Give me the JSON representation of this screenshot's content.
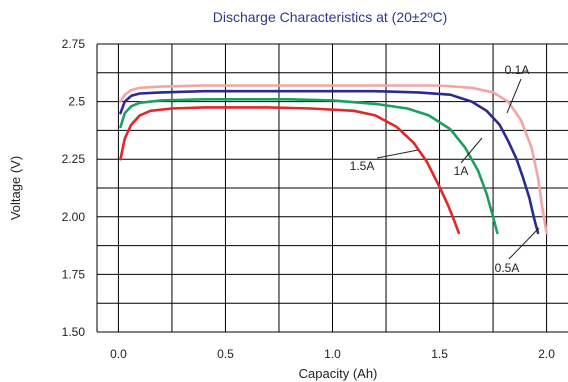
{
  "chart_data": {
    "type": "line",
    "title": "Discharge Characteristics at (20±2ºC)",
    "xlabel": "Capacity (Ah)",
    "ylabel": "Voltage (V)",
    "xlim": [
      -0.1,
      2.1
    ],
    "ylim": [
      1.5,
      2.75
    ],
    "grid": true,
    "x_ticks": [
      0.0,
      0.5,
      1.0,
      1.5,
      2.0
    ],
    "x_tick_labels": [
      "0.0",
      "0.5",
      "1.0",
      "1.5",
      "2.0"
    ],
    "y_ticks": [
      1.5,
      1.75,
      2.0,
      2.25,
      2.5,
      2.75
    ],
    "y_tick_labels": [
      "1.50",
      "1.75",
      "2.00",
      "2.25",
      "2.5",
      "2.75"
    ],
    "colors": {
      "title": "#2b3a8f",
      "grid": "#000000",
      "0.1A": "#f2a5a5",
      "0.5A": "#2a2a8f",
      "1A": "#1aa060",
      "1.5A": "#e02828"
    },
    "series": [
      {
        "name": "0.1A",
        "x": [
          0.01,
          0.03,
          0.06,
          0.1,
          0.2,
          0.4,
          0.8,
          1.2,
          1.5,
          1.65,
          1.75,
          1.82,
          1.88,
          1.93,
          1.96,
          1.98,
          2.0
        ],
        "y": [
          2.5,
          2.53,
          2.55,
          2.56,
          2.565,
          2.57,
          2.57,
          2.57,
          2.57,
          2.56,
          2.54,
          2.5,
          2.42,
          2.3,
          2.17,
          2.04,
          1.93
        ]
      },
      {
        "name": "0.5A",
        "x": [
          0.01,
          0.03,
          0.06,
          0.1,
          0.2,
          0.4,
          0.8,
          1.2,
          1.4,
          1.55,
          1.65,
          1.72,
          1.78,
          1.82,
          1.86,
          1.89,
          1.92,
          1.94,
          1.96
        ],
        "y": [
          2.45,
          2.5,
          2.525,
          2.535,
          2.54,
          2.545,
          2.545,
          2.545,
          2.54,
          2.53,
          2.5,
          2.46,
          2.4,
          2.33,
          2.25,
          2.17,
          2.08,
          2.0,
          1.93
        ]
      },
      {
        "name": "1A",
        "x": [
          0.01,
          0.03,
          0.06,
          0.1,
          0.2,
          0.4,
          0.8,
          1.0,
          1.2,
          1.35,
          1.45,
          1.55,
          1.62,
          1.68,
          1.72,
          1.75,
          1.77
        ],
        "y": [
          2.39,
          2.45,
          2.48,
          2.495,
          2.505,
          2.51,
          2.51,
          2.505,
          2.49,
          2.47,
          2.44,
          2.38,
          2.3,
          2.2,
          2.1,
          2.0,
          1.93
        ]
      },
      {
        "name": "1.5A",
        "x": [
          0.01,
          0.03,
          0.06,
          0.1,
          0.15,
          0.25,
          0.4,
          0.7,
          0.9,
          1.1,
          1.2,
          1.3,
          1.38,
          1.44,
          1.5,
          1.54,
          1.57,
          1.59
        ],
        "y": [
          2.25,
          2.34,
          2.4,
          2.44,
          2.46,
          2.47,
          2.475,
          2.475,
          2.47,
          2.46,
          2.44,
          2.39,
          2.32,
          2.24,
          2.13,
          2.05,
          1.98,
          1.93
        ]
      }
    ],
    "annotations": [
      {
        "text": "0.1A",
        "series": "0.1A",
        "x": 1.81,
        "y": 2.52
      },
      {
        "text": "1.5A",
        "series": "1.5A",
        "x": 1.35,
        "y": 2.33
      },
      {
        "text": "1A",
        "series": "1A",
        "x": 1.64,
        "y": 2.26
      },
      {
        "text": "0.5A",
        "series": "0.5A",
        "x": 1.96,
        "y": 1.97
      }
    ]
  }
}
